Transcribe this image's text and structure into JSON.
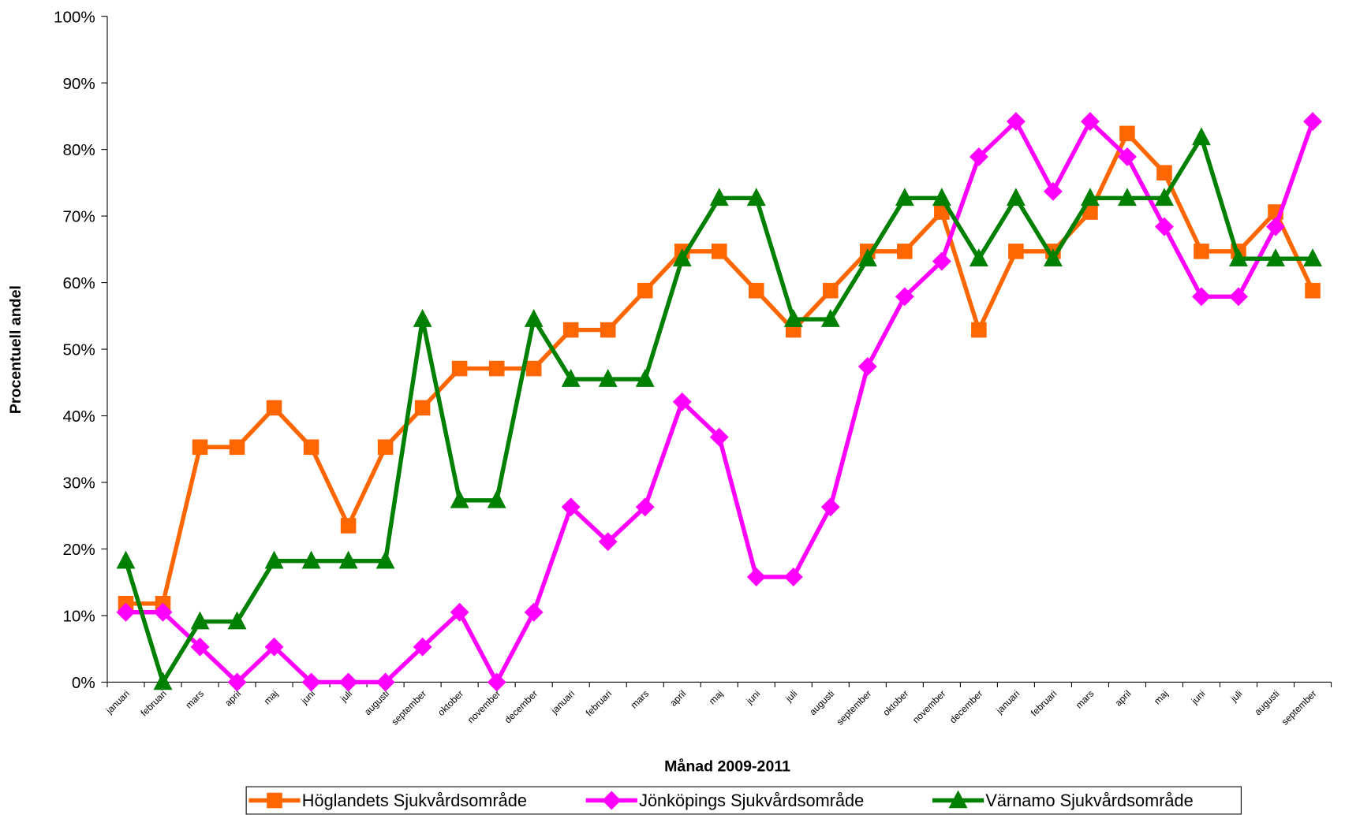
{
  "chart_data": {
    "type": "line",
    "x_label": "Månad 2009-2011",
    "y_label": "Procentuell andel",
    "categories": [
      "januari",
      "februari",
      "mars",
      "april",
      "maj",
      "juni",
      "juli",
      "augusti",
      "september",
      "oktober",
      "november",
      "december",
      "januari",
      "februari",
      "mars",
      "april",
      "maj",
      "juni",
      "juli",
      "augusti",
      "september",
      "oktober",
      "november",
      "december",
      "januari",
      "februari",
      "mars",
      "april",
      "maj",
      "juni",
      "juli",
      "augusti",
      "september"
    ],
    "series": [
      {
        "name": "Höglandets Sjukvårdsområde",
        "color": "#ff6600",
        "marker": "square",
        "values": [
          11.8,
          11.8,
          35.3,
          35.3,
          41.2,
          35.3,
          23.5,
          35.3,
          41.2,
          47.1,
          47.1,
          47.1,
          52.9,
          52.9,
          58.8,
          64.7,
          64.7,
          58.8,
          52.9,
          58.8,
          64.7,
          64.7,
          70.6,
          52.9,
          64.7,
          64.7,
          70.6,
          82.4,
          76.5,
          64.7,
          64.7,
          70.6,
          58.8
        ]
      },
      {
        "name": "Jönköpings Sjukvårdsområde",
        "color": "#ff00ff",
        "marker": "diamond",
        "values": [
          10.5,
          10.5,
          5.3,
          0,
          5.3,
          0,
          0,
          0,
          5.3,
          10.5,
          0,
          10.5,
          26.3,
          21.1,
          26.3,
          42.1,
          36.8,
          15.8,
          15.8,
          26.3,
          47.4,
          57.9,
          63.2,
          78.9,
          84.2,
          73.7,
          84.2,
          78.9,
          68.4,
          57.9,
          57.9,
          68.4,
          84.2
        ]
      },
      {
        "name": "Värnamo Sjukvårdsområde",
        "color": "#008000",
        "marker": "triangle",
        "values": [
          18.2,
          0,
          9.1,
          9.1,
          18.2,
          18.2,
          18.2,
          18.2,
          54.5,
          27.3,
          27.3,
          54.5,
          45.5,
          45.5,
          45.5,
          63.6,
          72.7,
          72.7,
          54.5,
          54.5,
          63.6,
          72.7,
          72.7,
          63.6,
          72.7,
          63.6,
          72.7,
          72.7,
          72.7,
          81.8,
          63.6,
          63.6,
          63.6
        ]
      }
    ],
    "ylim": [
      0,
      100
    ],
    "yticks": [
      {
        "value": 0,
        "label": "0%"
      },
      {
        "value": 10,
        "label": "10%"
      },
      {
        "value": 20,
        "label": "20%"
      },
      {
        "value": 30,
        "label": "30%"
      },
      {
        "value": 40,
        "label": "40%"
      },
      {
        "value": 50,
        "label": "50%"
      },
      {
        "value": 60,
        "label": "60%"
      },
      {
        "value": 70,
        "label": "70%"
      },
      {
        "value": 80,
        "label": "80%"
      },
      {
        "value": 90,
        "label": "90%"
      },
      {
        "value": 100,
        "label": "100%"
      }
    ],
    "grid": false,
    "legend": "bottom"
  }
}
